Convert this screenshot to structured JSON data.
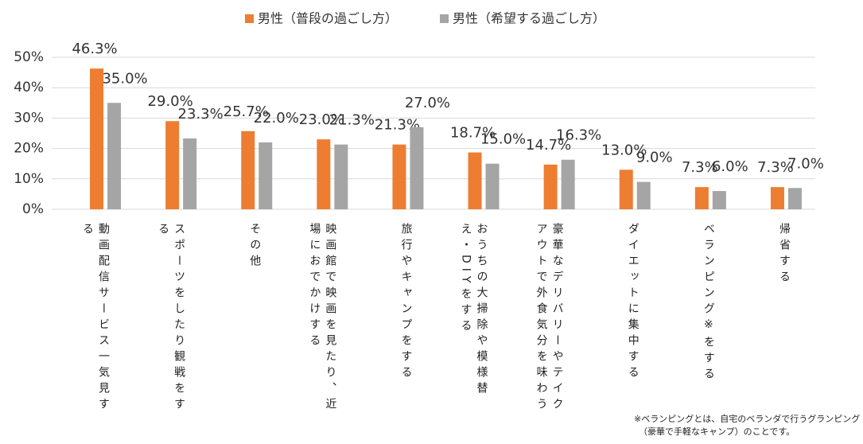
{
  "chart_data": {
    "type": "bar",
    "categories": [
      "動画配信サービス一気見する",
      "スポーツをしたり観戦をする",
      "その他",
      "映画館で映画を見たり、近場におでかけする",
      "旅行やキャンプをする",
      "おうちの大掃除や模様替え・DIYをする",
      "豪華なデリバリーやテイクアウトで外食気分を味わう",
      "ダイエットに集中する",
      "ベランピング※をする",
      "帰省する"
    ],
    "series": [
      {
        "name": "男性（普段の過ごし方）",
        "color": "#ed7d31",
        "values": [
          46.3,
          29.0,
          25.7,
          23.0,
          21.3,
          18.7,
          14.7,
          13.0,
          7.3,
          7.3
        ],
        "value_labels": [
          "46.3%",
          "29.0%",
          "25.7%",
          "23.0%",
          "21.3%",
          "18.7%",
          "14.7%",
          "13.0%",
          "7.3%",
          "7.3%"
        ]
      },
      {
        "name": "男性（希望する過ごし方）",
        "color": "#a5a5a5",
        "values": [
          35.0,
          23.3,
          22.0,
          21.3,
          27.0,
          15.0,
          16.3,
          9.0,
          6.0,
          7.0
        ],
        "value_labels": [
          "35.0%",
          "23.3%",
          "22.0%",
          "21.3%",
          "27.0%",
          "15.0%",
          "16.3%",
          "9.0%",
          "6.0%",
          "7.0%"
        ]
      }
    ],
    "ylim": [
      0,
      50
    ],
    "yticks": [
      {
        "value": 0,
        "label": "0%"
      },
      {
        "value": 10,
        "label": "10%"
      },
      {
        "value": 20,
        "label": "20%"
      },
      {
        "value": 30,
        "label": "30%"
      },
      {
        "value": 40,
        "label": "40%"
      },
      {
        "value": 50,
        "label": "50%"
      }
    ],
    "grid": true,
    "legend": "top",
    "notes": [
      "※ベランピングとは、自宅のベランダで行うグランピング",
      "（豪華で手軽なキャンプ）のことです。"
    ]
  }
}
